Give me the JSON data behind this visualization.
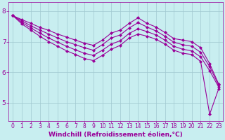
{
  "title": "",
  "xlabel": "Windchill (Refroidissement éolien,°C)",
  "ylabel": "",
  "bg_color": "#c8eef0",
  "grid_color": "#a0c8d0",
  "line_color": "#990099",
  "xlim": [
    -0.5,
    23.5
  ],
  "ylim": [
    4.4,
    8.3
  ],
  "xticks": [
    0,
    1,
    2,
    3,
    4,
    5,
    6,
    7,
    8,
    9,
    10,
    11,
    12,
    13,
    14,
    15,
    16,
    17,
    18,
    19,
    20,
    21,
    22,
    23
  ],
  "yticks": [
    5,
    6,
    7,
    8
  ],
  "series": [
    [
      7.85,
      7.72,
      7.6,
      7.47,
      7.37,
      7.25,
      7.15,
      7.05,
      6.95,
      6.88,
      7.05,
      7.28,
      7.38,
      7.6,
      7.78,
      7.6,
      7.48,
      7.3,
      7.1,
      7.05,
      7.0,
      6.8,
      6.28,
      5.62
    ],
    [
      7.85,
      7.68,
      7.52,
      7.38,
      7.25,
      7.12,
      7.0,
      6.9,
      6.8,
      6.72,
      6.9,
      7.12,
      7.22,
      7.45,
      7.62,
      7.48,
      7.35,
      7.18,
      6.98,
      6.9,
      6.85,
      6.65,
      6.18,
      5.58
    ],
    [
      7.85,
      7.63,
      7.45,
      7.28,
      7.12,
      6.98,
      6.85,
      6.73,
      6.62,
      6.55,
      6.72,
      6.92,
      7.03,
      7.27,
      7.42,
      7.33,
      7.22,
      7.05,
      6.85,
      6.75,
      6.7,
      6.5,
      6.05,
      5.52
    ],
    [
      7.85,
      7.58,
      7.38,
      7.18,
      7.0,
      6.85,
      6.7,
      6.58,
      6.45,
      6.38,
      6.55,
      6.75,
      6.88,
      7.12,
      7.25,
      7.18,
      7.08,
      6.92,
      6.72,
      6.62,
      6.58,
      6.35,
      4.62,
      5.45
    ]
  ],
  "marker": "D",
  "markersize": 2.0,
  "linewidth": 0.8,
  "xlabel_fontsize": 6.5,
  "tick_fontsize": 5.5,
  "ytick_fontsize": 6.5,
  "xlabel_color": "#990099",
  "tick_color": "#990099",
  "axis_color": "#990099"
}
